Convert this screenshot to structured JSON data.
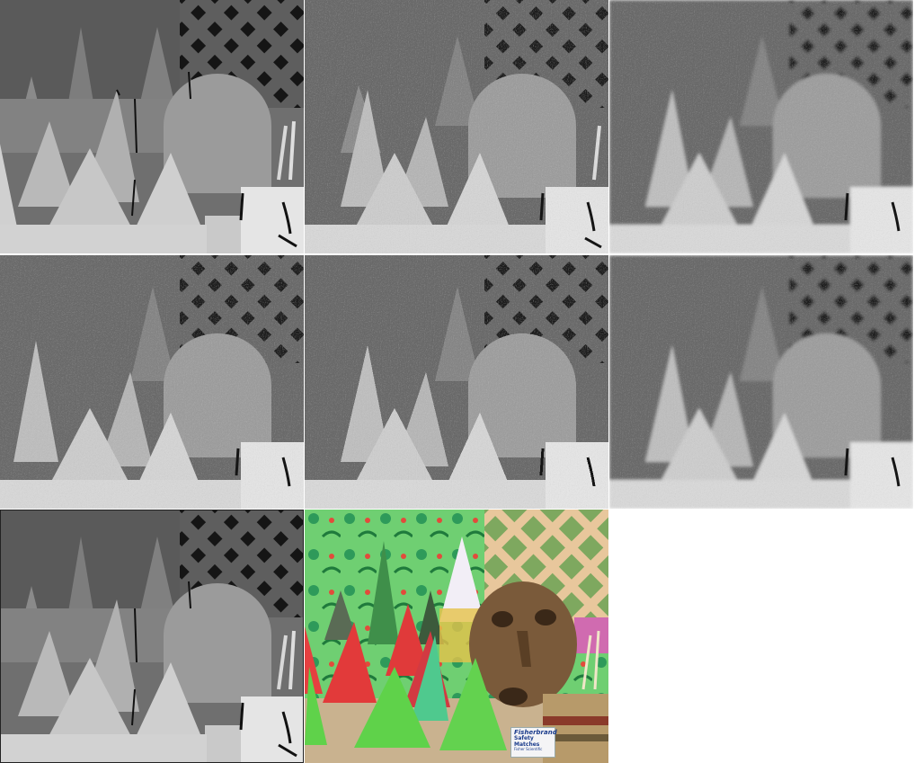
{
  "figure": {
    "layout": "3x3 grid of 8 panels (last cell empty)",
    "panels": [
      {
        "id": "depth-estimate-sparse",
        "style": "sharp",
        "has_holes": true
      },
      {
        "id": "depth-estimate-noisy-1",
        "style": "noisy"
      },
      {
        "id": "depth-estimate-noisy-2",
        "style": "noisy-smooth"
      },
      {
        "id": "depth-estimate-noisy-3",
        "style": "noisy"
      },
      {
        "id": "depth-estimate-blocky",
        "style": "blocky"
      },
      {
        "id": "depth-estimate-noisy-4",
        "style": "noisy-smooth"
      },
      {
        "id": "depth-ground-truth",
        "style": "sharp",
        "has_holes": true
      },
      {
        "id": "rgb-reference",
        "style": "color"
      }
    ]
  },
  "photo_label": {
    "brand": "Fisherbrand",
    "product": "Safety Matches",
    "manufacturer": "Fisher Scientific"
  },
  "colors": {
    "green_cone": "#5fd24a",
    "red_cone": "#e23a3a",
    "wood_mask": "#7a5a3a",
    "lattice": "#d9b48a",
    "table": "#c9b28f"
  }
}
